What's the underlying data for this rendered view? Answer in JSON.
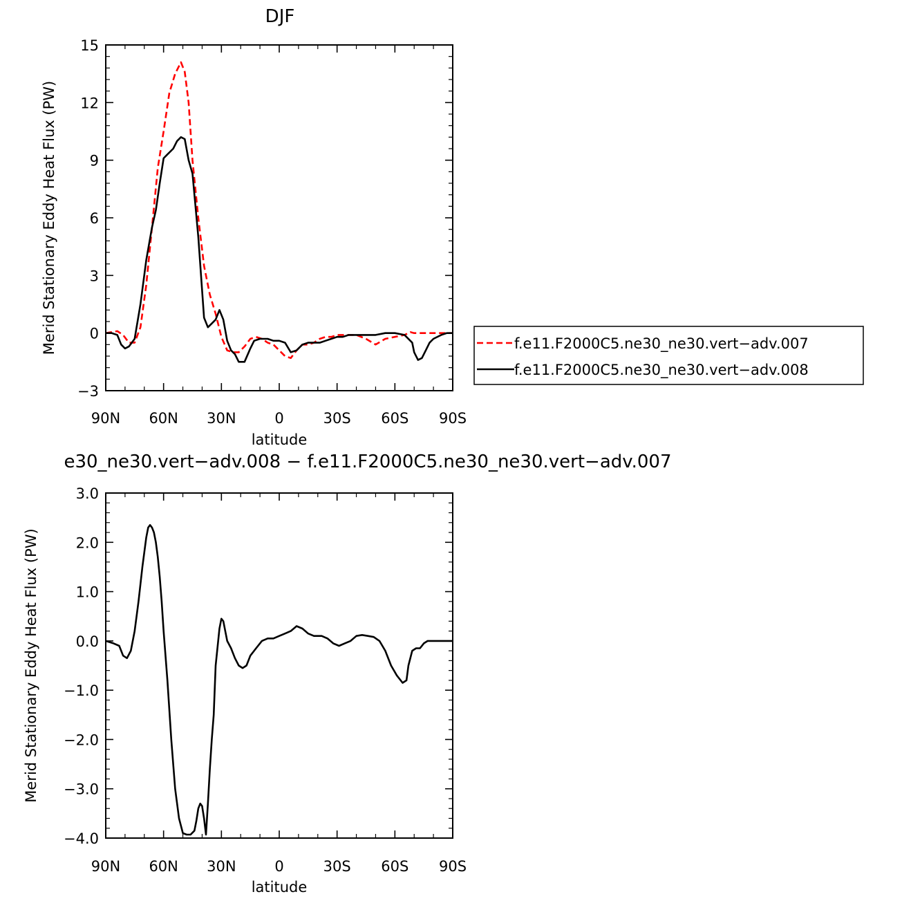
{
  "chart_data": [
    {
      "type": "line",
      "title": "DJF",
      "xlabel": "latitude",
      "ylabel": "Merid Stationary Eddy Heat Flux (PW)",
      "xlim": [
        90,
        -90
      ],
      "ylim": [
        -3,
        15
      ],
      "x_ticks": [
        90,
        60,
        30,
        0,
        -30,
        -60,
        -90
      ],
      "x_tick_labels": [
        "90N",
        "60N",
        "30N",
        "0",
        "30S",
        "60S",
        "90S"
      ],
      "y_ticks": [
        -3,
        0,
        3,
        6,
        9,
        12,
        15
      ],
      "y_tick_labels": [
        "−3",
        "0",
        "3",
        "6",
        "9",
        "12",
        "15"
      ],
      "legend_position": "right",
      "series": [
        {
          "name": "f.e11.F2000C5.ne30_ne30.vert−adv.007",
          "color": "#ff0000",
          "dash": "dashed",
          "x": [
            90,
            87,
            84,
            81,
            78,
            75,
            72,
            69,
            66,
            63,
            60,
            57,
            54,
            51,
            49,
            47,
            45,
            42,
            39,
            36,
            33,
            30,
            27,
            24,
            21,
            18,
            15,
            12,
            9,
            6,
            3,
            0,
            -3,
            -6,
            -9,
            -12,
            -15,
            -18,
            -21,
            -24,
            -27,
            -30,
            -33,
            -36,
            -40,
            -45,
            -50,
            -55,
            -60,
            -65,
            -68,
            -70,
            -72,
            -74,
            -76,
            -78,
            -80,
            -84,
            -87,
            -90
          ],
          "y": [
            0.0,
            0.05,
            0.1,
            -0.1,
            -0.5,
            -0.5,
            0.3,
            2.5,
            5.5,
            8.6,
            10.5,
            12.5,
            13.5,
            14.1,
            13.6,
            12.0,
            9.0,
            6.0,
            3.5,
            2.0,
            1.0,
            -0.2,
            -0.9,
            -1.0,
            -1.0,
            -0.7,
            -0.3,
            -0.2,
            -0.3,
            -0.5,
            -0.6,
            -0.9,
            -1.2,
            -1.3,
            -0.9,
            -0.6,
            -0.6,
            -0.5,
            -0.3,
            -0.2,
            -0.2,
            -0.1,
            -0.1,
            -0.1,
            -0.1,
            -0.3,
            -0.6,
            -0.3,
            -0.2,
            -0.1,
            0.05,
            0.0,
            0.0,
            0.0,
            0.0,
            0.0,
            0.0,
            0.0,
            0.0,
            0.0
          ]
        },
        {
          "name": "f.e11.F2000C5.ne30_ne30.vert−adv.008",
          "color": "#000000",
          "dash": "solid",
          "x": [
            90,
            87,
            84,
            82,
            80,
            78,
            75,
            72,
            69,
            66,
            64,
            62,
            60,
            58,
            55,
            53,
            51,
            49,
            47,
            45,
            42,
            39,
            37,
            35,
            33,
            31,
            29,
            27,
            25,
            23,
            21,
            18,
            15,
            13,
            10,
            6,
            3,
            0,
            -3,
            -6,
            -9,
            -12,
            -15,
            -18,
            -21,
            -24,
            -27,
            -30,
            -33,
            -36,
            -40,
            -45,
            -50,
            -55,
            -60,
            -65,
            -69,
            -70,
            -72,
            -74,
            -76,
            -78,
            -80,
            -84,
            -87,
            -90
          ],
          "y": [
            0.0,
            0.0,
            -0.1,
            -0.6,
            -0.8,
            -0.7,
            -0.3,
            1.5,
            3.8,
            5.5,
            6.4,
            7.8,
            9.1,
            9.3,
            9.6,
            10.0,
            10.2,
            10.1,
            9.0,
            8.3,
            5.0,
            0.8,
            0.3,
            0.5,
            0.7,
            1.2,
            0.7,
            -0.4,
            -0.9,
            -1.1,
            -1.5,
            -1.5,
            -0.8,
            -0.4,
            -0.3,
            -0.3,
            -0.4,
            -0.4,
            -0.5,
            -1.0,
            -0.9,
            -0.6,
            -0.5,
            -0.5,
            -0.5,
            -0.4,
            -0.3,
            -0.2,
            -0.2,
            -0.1,
            -0.1,
            -0.1,
            -0.1,
            0.0,
            0.0,
            -0.1,
            -0.5,
            -1.0,
            -1.4,
            -1.3,
            -0.9,
            -0.5,
            -0.3,
            -0.1,
            0.0,
            0.0
          ]
        }
      ]
    },
    {
      "type": "line",
      "title": "e30_ne30.vert−adv.008 − f.e11.F2000C5.ne30_ne30.vert−adv.007",
      "xlabel": "latitude",
      "ylabel": "Merid Stationary Eddy Heat Flux (PW)",
      "xlim": [
        90,
        -90
      ],
      "ylim": [
        -4,
        3
      ],
      "x_ticks": [
        90,
        60,
        30,
        0,
        -30,
        -60,
        -90
      ],
      "x_tick_labels": [
        "90N",
        "60N",
        "30N",
        "0",
        "30S",
        "60S",
        "90S"
      ],
      "y_ticks": [
        -4,
        -3,
        -2,
        -1,
        0,
        1,
        2,
        3
      ],
      "y_tick_labels": [
        "−4.0",
        "−3.0",
        "−2.0",
        "−1.0",
        "0.0",
        "1.0",
        "2.0",
        "3.0"
      ],
      "series": [
        {
          "color": "#000000",
          "dash": "solid",
          "x": [
            90,
            86,
            83,
            81,
            79,
            77,
            75,
            73,
            71,
            69,
            68,
            67,
            66,
            65,
            64,
            63,
            62,
            61,
            60,
            58,
            56,
            54,
            52,
            50,
            48,
            46,
            44,
            43,
            42,
            41,
            40,
            39,
            38,
            37,
            36,
            35,
            34,
            33,
            31,
            30,
            29,
            28,
            27,
            25,
            23,
            21,
            19,
            17,
            15,
            12,
            9,
            6,
            3,
            0,
            -3,
            -6,
            -9,
            -12,
            -15,
            -18,
            -20,
            -22,
            -25,
            -28,
            -31,
            -34,
            -37,
            -40,
            -43,
            -46,
            -49,
            -52,
            -55,
            -58,
            -61,
            -64,
            -66,
            -67,
            -69,
            -71,
            -73,
            -75,
            -77,
            -79,
            -81,
            -83,
            -85,
            -88,
            -90
          ],
          "y": [
            0.0,
            -0.05,
            -0.1,
            -0.3,
            -0.35,
            -0.2,
            0.2,
            0.8,
            1.5,
            2.1,
            2.3,
            2.35,
            2.3,
            2.2,
            2.0,
            1.7,
            1.3,
            0.8,
            0.2,
            -0.8,
            -2.0,
            -3.0,
            -3.6,
            -3.9,
            -3.93,
            -3.93,
            -3.85,
            -3.65,
            -3.4,
            -3.3,
            -3.35,
            -3.6,
            -3.93,
            -3.3,
            -2.6,
            -2.0,
            -1.5,
            -0.5,
            0.25,
            0.45,
            0.4,
            0.2,
            0.0,
            -0.15,
            -0.35,
            -0.5,
            -0.55,
            -0.5,
            -0.3,
            -0.15,
            0.0,
            0.05,
            0.05,
            0.1,
            0.15,
            0.2,
            0.3,
            0.25,
            0.15,
            0.1,
            0.1,
            0.1,
            0.05,
            -0.05,
            -0.1,
            -0.05,
            0.0,
            0.1,
            0.12,
            0.1,
            0.08,
            0.0,
            -0.2,
            -0.5,
            -0.7,
            -0.85,
            -0.8,
            -0.5,
            -0.2,
            -0.15,
            -0.15,
            -0.05,
            0.0,
            0.0,
            0.0,
            0.0,
            0.0,
            0.0,
            0.0
          ]
        }
      ]
    }
  ]
}
